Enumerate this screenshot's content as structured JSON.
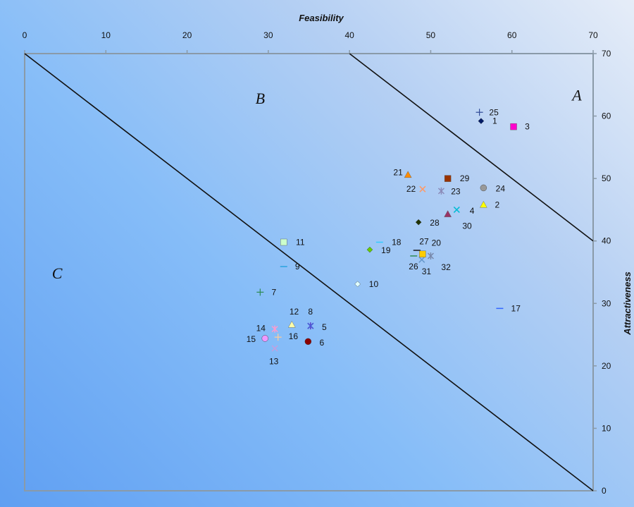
{
  "chart_data": {
    "type": "scatter",
    "xlabel": "Feasibility",
    "ylabel": "Attractiveness",
    "xlim": [
      0,
      70
    ],
    "ylim": [
      0,
      70
    ],
    "x_ticks": [
      "0",
      "10",
      "20",
      "30",
      "40",
      "50",
      "60",
      "70"
    ],
    "y_ticks": [
      "0",
      "10",
      "20",
      "30",
      "40",
      "50",
      "60",
      "70"
    ],
    "x_axis_position": "top",
    "y_axis_position": "right",
    "y_reversed": true,
    "grid": false,
    "legend": "none",
    "boundary_lines": [
      {
        "from": [
          0,
          70
        ],
        "to": [
          70,
          0
        ]
      },
      {
        "from": [
          40,
          70
        ],
        "to": [
          70,
          40
        ]
      }
    ],
    "regions": [
      {
        "label": "A",
        "x": 68,
        "y": 62.5
      },
      {
        "label": "B",
        "x": 29,
        "y": 62
      },
      {
        "label": "C",
        "x": 4,
        "y": 34
      }
    ],
    "points": [
      {
        "label": "1",
        "x": 56.2,
        "y": 59.2,
        "marker": "diamond",
        "color": "#001a66",
        "lx": 57.6,
        "ly": 59.2
      },
      {
        "label": "2",
        "x": 56.5,
        "y": 45.8,
        "marker": "triangle",
        "color": "#ffff00",
        "lx": 57.9,
        "ly": 45.8
      },
      {
        "label": "3",
        "x": 60.2,
        "y": 58.3,
        "marker": "square",
        "color": "#ff00cc",
        "lx": 61.6,
        "ly": 58.3
      },
      {
        "label": "4",
        "x": 53.2,
        "y": 45.0,
        "marker": "x",
        "color": "#00bcd4",
        "lx": 54.8,
        "ly": 44.8
      },
      {
        "label": "5",
        "x": 35.2,
        "y": 26.4,
        "marker": "star",
        "color": "#5a3fc7",
        "lx": 36.6,
        "ly": 26.2
      },
      {
        "label": "6",
        "x": 34.9,
        "y": 23.9,
        "marker": "circle",
        "color": "#8b0000",
        "lx": 36.3,
        "ly": 23.7
      },
      {
        "label": "7",
        "x": 29.0,
        "y": 31.8,
        "marker": "plus",
        "color": "#2e8b57",
        "lx": 30.4,
        "ly": 31.8
      },
      {
        "label": "8",
        "x": 35.2,
        "y": 26.4,
        "marker": "x",
        "color": "#4b5cd6",
        "lx": 34.9,
        "ly": 28.7
      },
      {
        "label": "9",
        "x": 31.9,
        "y": 35.9,
        "marker": "dash",
        "color": "#2aa3e0",
        "lx": 33.3,
        "ly": 35.9
      },
      {
        "label": "10",
        "x": 41.0,
        "y": 33.1,
        "marker": "diamond",
        "color": "#e0ffff",
        "lx": 42.4,
        "ly": 33.1
      },
      {
        "label": "11",
        "x": 31.9,
        "y": 39.8,
        "marker": "square",
        "color": "#ccffcc",
        "lx": 33.4,
        "ly": 39.8
      },
      {
        "label": "12",
        "x": 32.9,
        "y": 26.6,
        "marker": "triangle",
        "color": "#ffffaa",
        "lx": 32.6,
        "ly": 28.7
      },
      {
        "label": "13",
        "x": 30.8,
        "y": 22.8,
        "marker": "x",
        "color": "#c0a0e0",
        "lx": 30.1,
        "ly": 20.7
      },
      {
        "label": "14",
        "x": 30.8,
        "y": 25.9,
        "marker": "star",
        "color": "#ff99cc",
        "lx": 28.5,
        "ly": 26.0
      },
      {
        "label": "15",
        "x": 29.6,
        "y": 24.4,
        "marker": "circle",
        "color": "#ee99ff",
        "lx": 27.3,
        "ly": 24.3
      },
      {
        "label": "16",
        "x": 31.2,
        "y": 24.6,
        "marker": "plus",
        "color": "#ffcc99",
        "lx": 32.5,
        "ly": 24.7
      },
      {
        "label": "17",
        "x": 58.5,
        "y": 29.2,
        "marker": "dash",
        "color": "#3366ff",
        "lx": 59.9,
        "ly": 29.2
      },
      {
        "label": "18",
        "x": 43.7,
        "y": 39.8,
        "marker": "dash",
        "color": "#33ccff",
        "lx": 45.2,
        "ly": 39.8
      },
      {
        "label": "19",
        "x": 42.5,
        "y": 38.6,
        "marker": "diamond",
        "color": "#66cc00",
        "lx": 43.9,
        "ly": 38.5
      },
      {
        "label": "20",
        "x": 48.3,
        "y": 38.5,
        "marker": "dash",
        "color": "#002266",
        "lx": 50.1,
        "ly": 39.7
      },
      {
        "label": "21",
        "x": 47.2,
        "y": 50.6,
        "marker": "triangle",
        "color": "#ff8c00",
        "lx": 45.4,
        "ly": 51.0
      },
      {
        "label": "22",
        "x": 49.0,
        "y": 48.3,
        "marker": "x",
        "color": "#ff9966",
        "lx": 47.0,
        "ly": 48.3
      },
      {
        "label": "23",
        "x": 51.3,
        "y": 48.0,
        "marker": "star",
        "color": "#8a8ab8",
        "lx": 52.5,
        "ly": 47.9
      },
      {
        "label": "24",
        "x": 56.5,
        "y": 48.5,
        "marker": "circle",
        "color": "#999999",
        "lx": 58.0,
        "ly": 48.4
      },
      {
        "label": "25",
        "x": 56.0,
        "y": 60.6,
        "marker": "plus",
        "color": "#334d99",
        "lx": 57.2,
        "ly": 60.6
      },
      {
        "label": "26",
        "x": 47.9,
        "y": 37.6,
        "marker": "dash",
        "color": "#2e8b57",
        "lx": 47.3,
        "ly": 35.9
      },
      {
        "label": "27",
        "x": 48.3,
        "y": 38.5,
        "marker": "dash",
        "color": "#333333",
        "lx": 48.6,
        "ly": 39.9
      },
      {
        "label": "28",
        "x": 48.5,
        "y": 43.0,
        "marker": "diamond",
        "color": "#1f3300",
        "lx": 49.9,
        "ly": 42.9
      },
      {
        "label": "29",
        "x": 52.1,
        "y": 50.0,
        "marker": "square",
        "color": "#993300",
        "lx": 53.6,
        "ly": 50.0
      },
      {
        "label": "30",
        "x": 52.1,
        "y": 44.3,
        "marker": "triangle",
        "color": "#993366",
        "lx": 53.9,
        "ly": 42.4
      },
      {
        "label": "31",
        "x": 48.9,
        "y": 37.0,
        "marker": "x",
        "color": "#6699cc",
        "lx": 48.9,
        "ly": 35.1
      },
      {
        "label": "32",
        "x": 50.0,
        "y": 37.6,
        "marker": "star",
        "color": "#7788aa",
        "lx": 51.3,
        "ly": 35.8
      },
      {
        "label": "",
        "x": 49.0,
        "y": 37.9,
        "marker": "square",
        "color": "#ffcc00"
      }
    ]
  }
}
